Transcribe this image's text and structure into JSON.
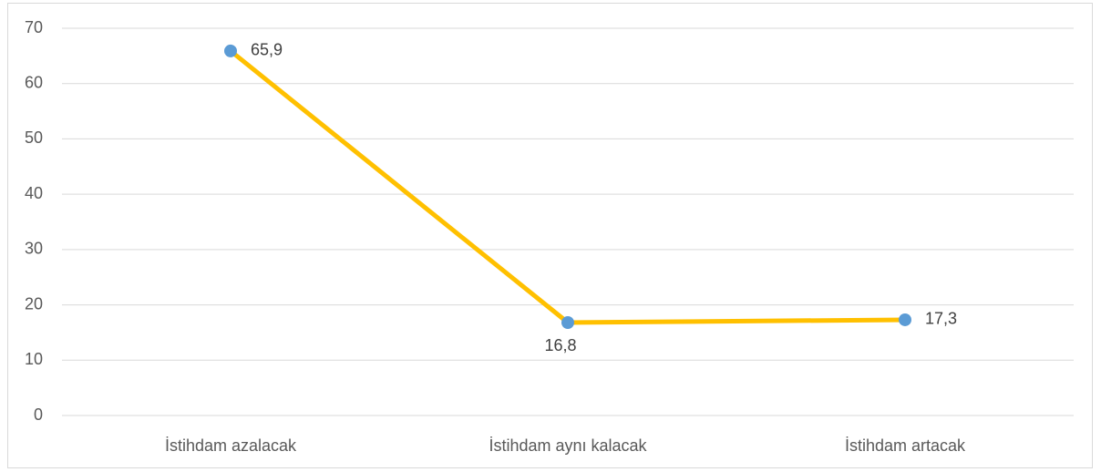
{
  "chart_data": {
    "type": "line",
    "categories": [
      "İstihdam azalacak",
      "İstihdam aynı kalacak",
      "İstihdam artacak"
    ],
    "series": [
      {
        "color": "#FFC000",
        "marker_color": "#5B9BD5",
        "values": [
          65.9,
          16.8,
          17.3
        ],
        "value_labels": [
          "65,9",
          "16,8",
          "17,3"
        ]
      }
    ],
    "ylim": [
      0,
      70
    ],
    "yticks": [
      0,
      10,
      20,
      30,
      40,
      50,
      60,
      70
    ],
    "grid": true
  }
}
